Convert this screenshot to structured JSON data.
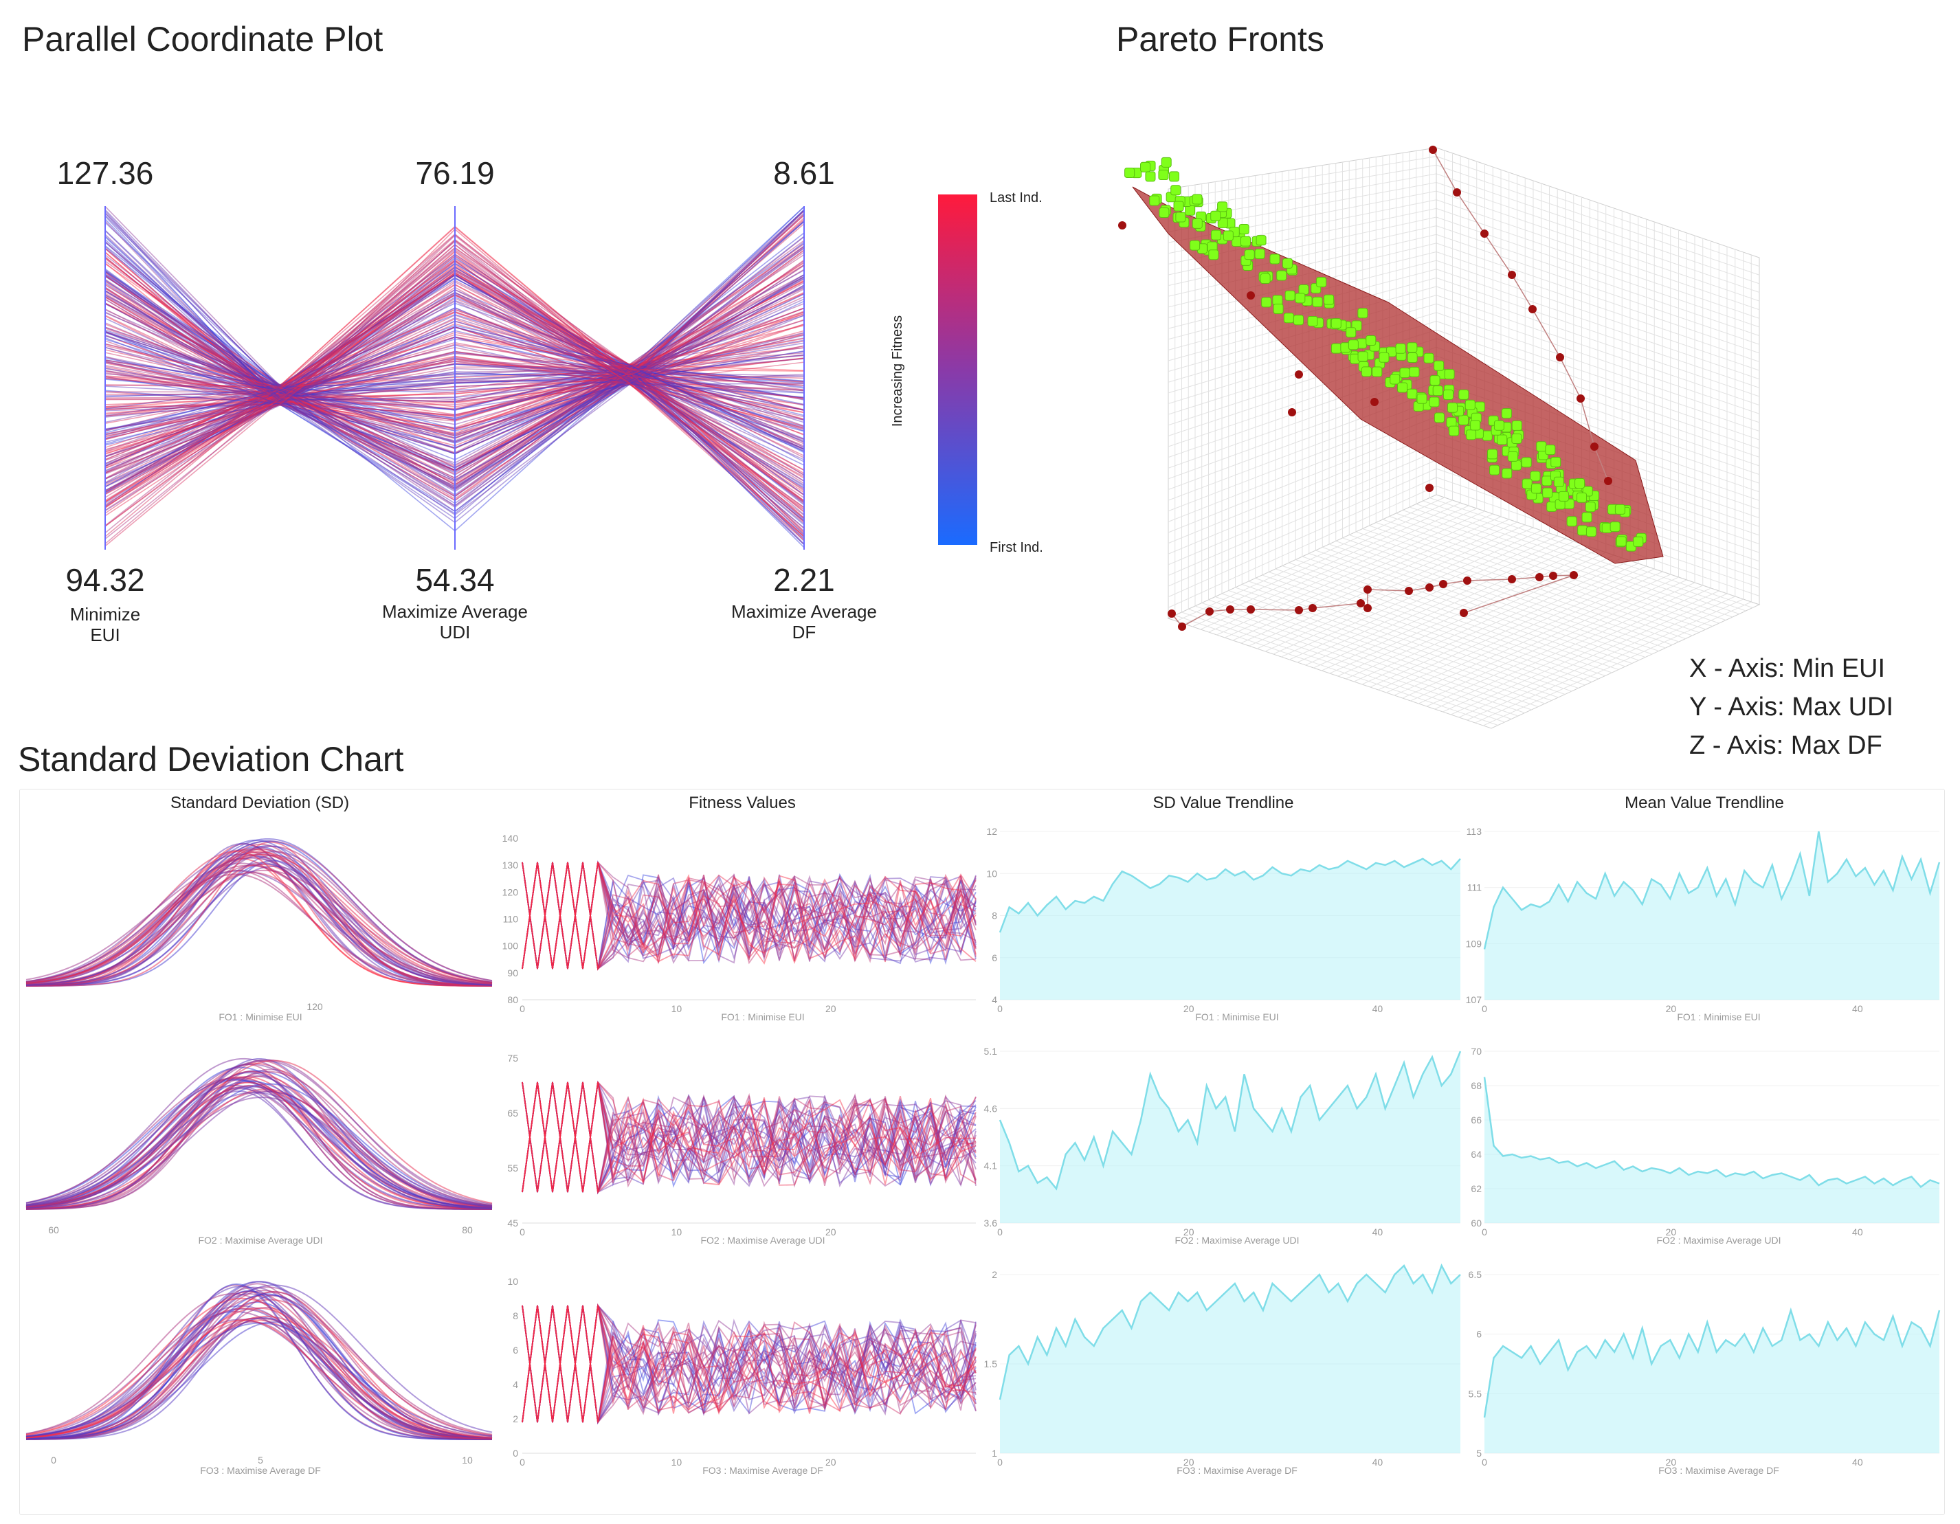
{
  "parallel": {
    "title": "Parallel Coordinate Plot",
    "axes": [
      {
        "top": "127.36",
        "bottom": "94.32",
        "label1": "Minimize",
        "label2": "EUI"
      },
      {
        "top": "76.19",
        "bottom": "54.34",
        "label1": "Maximize Average",
        "label2": "UDI"
      },
      {
        "top": "8.61",
        "bottom": "2.21",
        "label1": "Maximize Average",
        "label2": "DF"
      }
    ],
    "colorbar": {
      "top": "Last Ind.",
      "bottom": "First Ind.",
      "axis": "Increasing Fitness",
      "color_top": "#ff1a3c",
      "color_bottom": "#1a6bff"
    }
  },
  "pareto": {
    "title": "Pareto Fronts",
    "legend": [
      "X - Axis: Min EUI",
      "Y - Axis: Max UDI",
      "Z - Axis: Max DF"
    ],
    "colors": {
      "front": "#7fff1a",
      "points": "#a01010",
      "surface": "#b03030"
    }
  },
  "sd_chart": {
    "title": "Standard Deviation Chart",
    "columns": [
      "Standard Deviation (SD)",
      "Fitness Values",
      "SD Value Trendline",
      "Mean Value Trendline"
    ],
    "rows": [
      {
        "xlabel": "FO1 : Minimise EUI",
        "sd_ticks": [
          "120"
        ],
        "fit_y": [
          "140",
          "130",
          "120",
          "110",
          "100",
          "90",
          "80"
        ],
        "fit_x": [
          "0",
          "10",
          "20"
        ],
        "sdt_y": [
          "12",
          "10",
          "8",
          "6",
          "4"
        ],
        "mean_y": [
          "113",
          "111",
          "109",
          "107"
        ],
        "trend_x": [
          "0",
          "20",
          "40"
        ]
      },
      {
        "xlabel": "FO2 : Maximise Average UDI",
        "sd_ticks": [
          "60",
          "80"
        ],
        "fit_y": [
          "75",
          "65",
          "55",
          "45"
        ],
        "fit_x": [
          "0",
          "10",
          "20"
        ],
        "sdt_y": [
          "5.1",
          "4.6",
          "4.1",
          "3.6"
        ],
        "mean_y": [
          "70",
          "68",
          "66",
          "64",
          "62",
          "60"
        ],
        "trend_x": [
          "0",
          "20",
          "40"
        ]
      },
      {
        "xlabel": "FO3 : Maximise Average DF",
        "sd_ticks": [
          "0",
          "5",
          "10"
        ],
        "fit_y": [
          "10",
          "8",
          "6",
          "4",
          "2",
          "0"
        ],
        "fit_x": [
          "0",
          "10",
          "20"
        ],
        "sdt_y": [
          "2",
          "1.5",
          "1"
        ],
        "mean_y": [
          "6.5",
          "6",
          "5.5",
          "5"
        ],
        "trend_x": [
          "0",
          "20",
          "40"
        ]
      }
    ],
    "trend_color": "#b8f2f8",
    "sd_trend_series": [
      [
        7.2,
        8.4,
        8.1,
        8.6,
        8.0,
        8.5,
        8.9,
        8.3,
        8.7,
        8.6,
        8.9,
        8.7,
        9.5,
        10.1,
        9.9,
        9.6,
        9.3,
        9.5,
        9.9,
        9.8,
        9.6,
        10.0,
        9.7,
        9.8,
        10.2,
        9.9,
        10.1,
        9.7,
        9.9,
        10.3,
        10.0,
        9.9,
        10.2,
        10.1,
        10.4,
        10.2,
        10.3,
        10.6,
        10.4,
        10.2,
        10.5,
        10.4,
        10.6,
        10.3,
        10.5,
        10.7,
        10.4,
        10.6,
        10.2,
        10.7
      ],
      [
        4.5,
        4.3,
        4.05,
        4.1,
        3.95,
        4.0,
        3.9,
        4.2,
        4.3,
        4.15,
        4.35,
        4.1,
        4.4,
        4.3,
        4.2,
        4.5,
        4.9,
        4.7,
        4.6,
        4.4,
        4.5,
        4.3,
        4.8,
        4.6,
        4.7,
        4.4,
        4.9,
        4.6,
        4.5,
        4.4,
        4.6,
        4.4,
        4.7,
        4.8,
        4.5,
        4.6,
        4.7,
        4.8,
        4.6,
        4.7,
        4.9,
        4.6,
        4.8,
        5.0,
        4.7,
        4.9,
        5.05,
        4.8,
        4.9,
        5.1
      ],
      [
        1.3,
        1.55,
        1.6,
        1.5,
        1.65,
        1.55,
        1.7,
        1.6,
        1.75,
        1.65,
        1.6,
        1.7,
        1.75,
        1.8,
        1.7,
        1.85,
        1.9,
        1.85,
        1.8,
        1.9,
        1.85,
        1.9,
        1.8,
        1.85,
        1.9,
        1.95,
        1.85,
        1.9,
        1.8,
        1.95,
        1.9,
        1.85,
        1.9,
        1.95,
        2.0,
        1.9,
        1.95,
        1.85,
        1.95,
        2.0,
        1.95,
        1.9,
        2.0,
        2.05,
        1.95,
        2.0,
        1.9,
        2.05,
        1.95,
        2.0
      ]
    ],
    "mean_trend_series": [
      [
        108.8,
        110.3,
        111.0,
        110.6,
        110.2,
        110.4,
        110.3,
        110.5,
        111.1,
        110.5,
        111.2,
        110.8,
        110.6,
        111.5,
        110.7,
        111.2,
        110.9,
        110.4,
        111.3,
        111.1,
        110.6,
        111.5,
        110.8,
        111.0,
        111.7,
        110.7,
        111.3,
        110.4,
        111.6,
        111.2,
        111.0,
        111.8,
        110.6,
        111.3,
        112.2,
        110.7,
        113.0,
        111.2,
        111.5,
        112.0,
        111.4,
        111.7,
        111.1,
        111.6,
        110.9,
        112.1,
        111.3,
        112.0,
        110.8,
        111.9
      ],
      [
        68.5,
        64.5,
        63.9,
        64.0,
        63.8,
        63.9,
        63.7,
        63.8,
        63.5,
        63.6,
        63.3,
        63.5,
        63.2,
        63.4,
        63.6,
        63.1,
        63.3,
        63.0,
        63.2,
        63.1,
        62.9,
        63.2,
        62.8,
        63.0,
        62.9,
        63.1,
        62.7,
        62.9,
        62.8,
        63.0,
        62.6,
        62.8,
        62.9,
        62.7,
        62.5,
        62.8,
        62.2,
        62.5,
        62.6,
        62.3,
        62.5,
        62.7,
        62.3,
        62.6,
        62.2,
        62.5,
        62.7,
        62.1,
        62.5,
        62.3
      ],
      [
        5.3,
        5.8,
        5.9,
        5.85,
        5.8,
        5.9,
        5.75,
        5.85,
        5.95,
        5.7,
        5.85,
        5.9,
        5.8,
        5.95,
        5.85,
        6.0,
        5.8,
        6.05,
        5.75,
        5.9,
        5.95,
        5.8,
        6.0,
        5.85,
        6.1,
        5.85,
        5.95,
        5.9,
        6.0,
        5.85,
        6.05,
        5.9,
        5.95,
        6.2,
        5.95,
        6.0,
        5.9,
        6.1,
        5.95,
        6.05,
        5.9,
        6.1,
        6.0,
        5.95,
        6.15,
        5.9,
        6.1,
        6.05,
        5.9,
        6.2
      ]
    ]
  }
}
